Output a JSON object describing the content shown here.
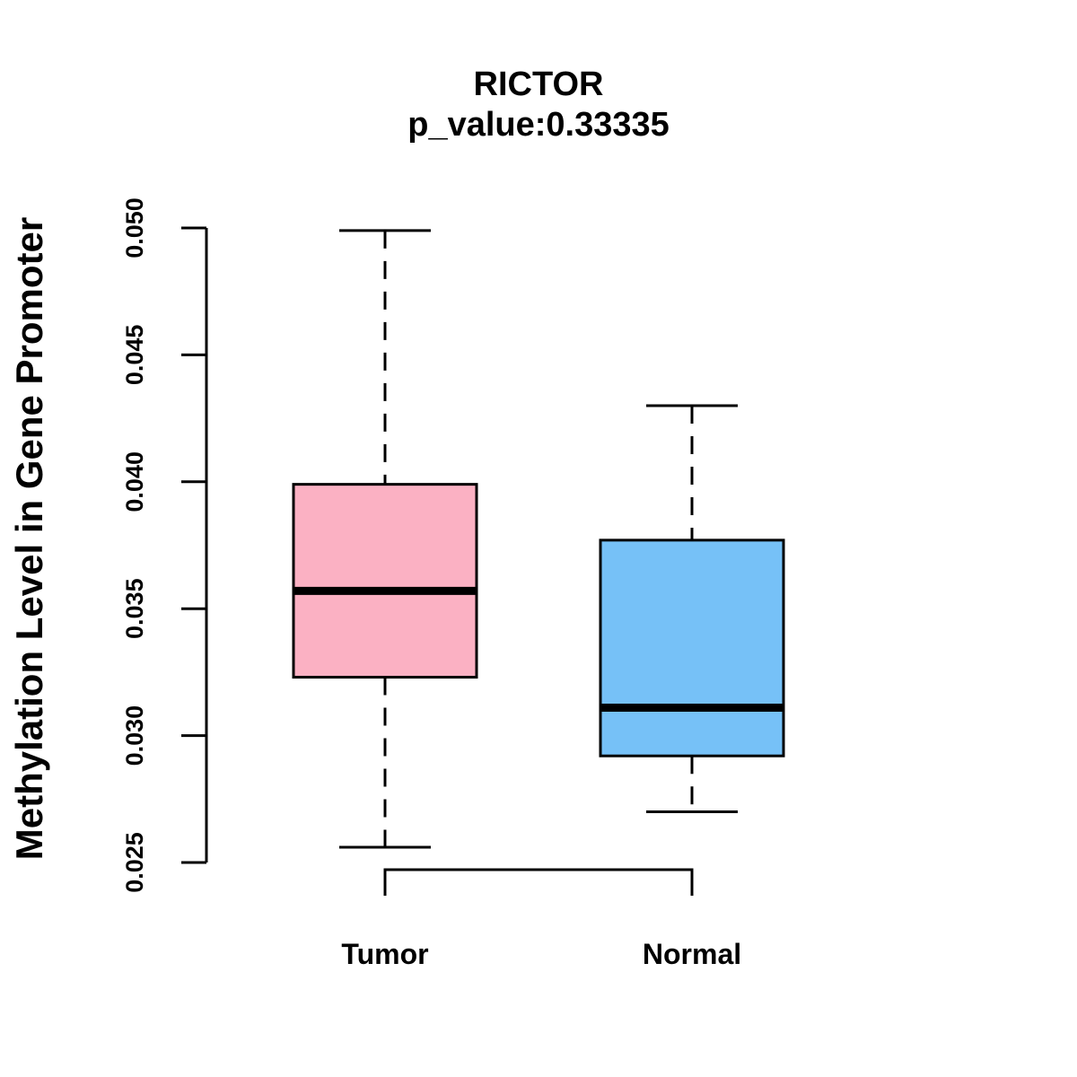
{
  "chart_data": {
    "type": "boxplot",
    "title": "RICTOR",
    "subtitle": "p_value:0.33335",
    "xlabel": "",
    "ylabel": "Methylation Level in Gene Promoter",
    "ylim": [
      0.025,
      0.05
    ],
    "y_ticks": [
      0.025,
      0.03,
      0.035,
      0.04,
      0.045,
      0.05
    ],
    "y_tick_labels": [
      "0.025",
      "0.030",
      "0.035",
      "0.040",
      "0.045",
      "0.050"
    ],
    "categories": [
      "Tumor",
      "Normal"
    ],
    "boxes": [
      {
        "name": "Tumor",
        "whisker_low": 0.0256,
        "q1": 0.0323,
        "median": 0.0357,
        "q3": 0.0399,
        "whisker_high": 0.0499,
        "color": "#FBB1C3"
      },
      {
        "name": "Normal",
        "whisker_low": 0.027,
        "q1": 0.0292,
        "median": 0.0311,
        "q3": 0.0377,
        "whisker_high": 0.043,
        "color": "#76C1F7"
      }
    ],
    "comparison_bracket": {
      "from": "Tumor",
      "to": "Normal"
    }
  }
}
